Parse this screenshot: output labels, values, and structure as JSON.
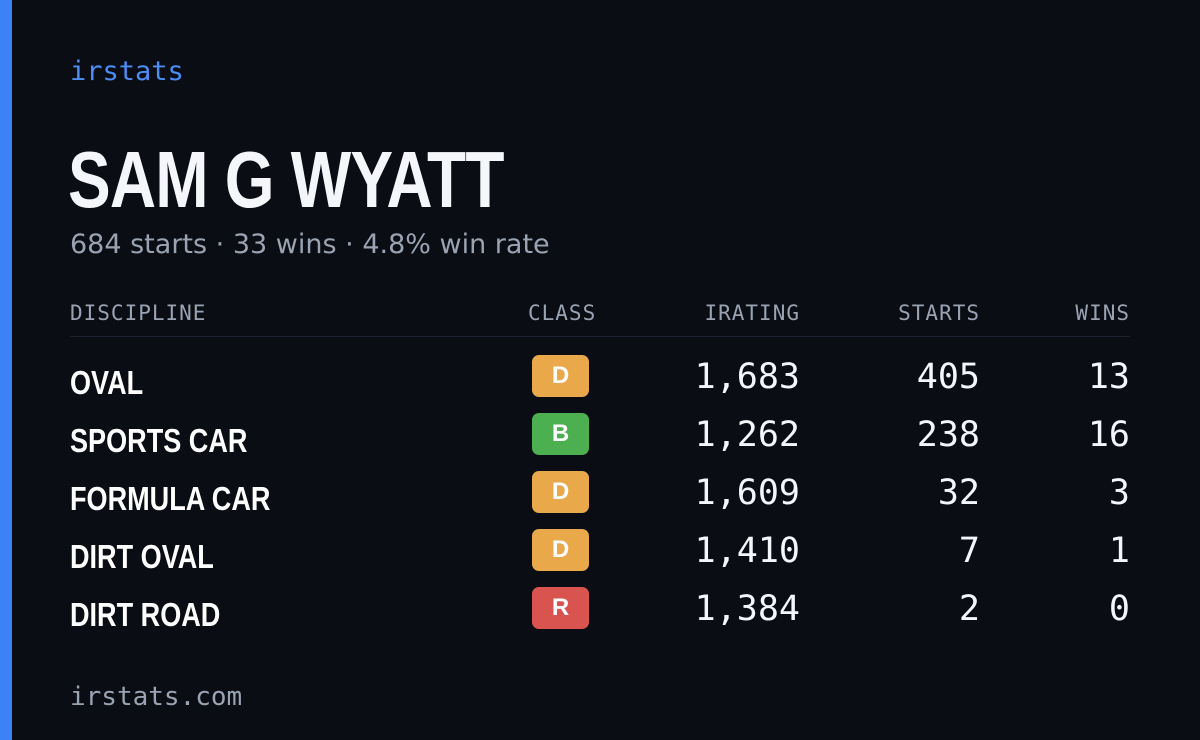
{
  "brand": "irstats",
  "driver": {
    "name": "SAM G WYATT",
    "starts_text": "684 starts",
    "wins_text": "33 wins",
    "winrate_text": "4.8% win rate",
    "separator": "·"
  },
  "table": {
    "headers": {
      "discipline": "DISCIPLINE",
      "class": "CLASS",
      "irating": "IRATING",
      "starts": "STARTS",
      "wins": "WINS"
    },
    "rows": [
      {
        "discipline": "OVAL",
        "class": "D",
        "class_color": "#e9a84a",
        "irating": "1,683",
        "starts": "405",
        "wins": "13"
      },
      {
        "discipline": "SPORTS CAR",
        "class": "B",
        "class_color": "#4caf50",
        "irating": "1,262",
        "starts": "238",
        "wins": "16"
      },
      {
        "discipline": "FORMULA CAR",
        "class": "D",
        "class_color": "#e9a84a",
        "irating": "1,609",
        "starts": "32",
        "wins": "3"
      },
      {
        "discipline": "DIRT OVAL",
        "class": "D",
        "class_color": "#e9a84a",
        "irating": "1,410",
        "starts": "7",
        "wins": "1"
      },
      {
        "discipline": "DIRT ROAD",
        "class": "R",
        "class_color": "#d9534f",
        "irating": "1,384",
        "starts": "2",
        "wins": "0"
      }
    ]
  },
  "footer": "irstats.com",
  "colors": {
    "background": "#0a0d14",
    "accent": "#3b82f6",
    "muted_text": "#9aa3b2"
  }
}
